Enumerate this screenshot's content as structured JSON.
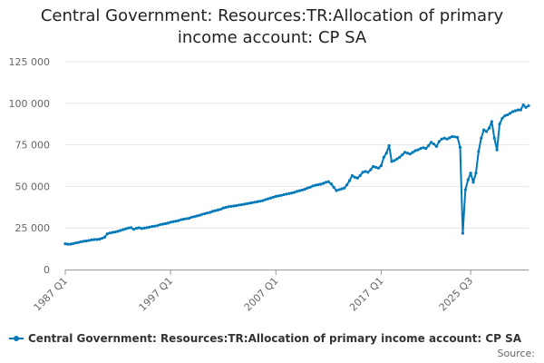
{
  "header": {
    "title_line1": "Central Government: Resources:TR:Allocation of primary",
    "title_line2": "income account: CP SA"
  },
  "footer": {
    "source_label": "Source:"
  },
  "colors": {
    "series": "#0079b8",
    "grid": "#e6e6e6",
    "axis": "#999999",
    "text": "#666666"
  },
  "chart_data": {
    "type": "line",
    "title": "Central Government: Resources:TR:Allocation of primary income account: CP SA",
    "xlabel": "",
    "ylabel": "",
    "grid": true,
    "legend_position": "bottom-left",
    "x_tick_labels": [
      "1987 Q1",
      "1997 Q1",
      "2007 Q1",
      "2017 Q1",
      "2025 Q3"
    ],
    "y_tick_labels": [
      "0",
      "25 000",
      "50 000",
      "75 000",
      "100 000",
      "125 000"
    ],
    "ylim": [
      0,
      125000
    ],
    "start": {
      "year": 1987,
      "quarter": 1
    },
    "series": [
      {
        "name": "Central Government: Resources:TR:Allocation of primary income account: CP SA",
        "values": [
          15500,
          15200,
          15300,
          15600,
          16000,
          16300,
          16700,
          17000,
          17200,
          17500,
          17800,
          18000,
          18000,
          18300,
          18800,
          19500,
          21500,
          22000,
          22300,
          22600,
          23000,
          23500,
          24000,
          24500,
          25000,
          25200,
          24200,
          24800,
          25100,
          24700,
          24900,
          25200,
          25500,
          25900,
          26100,
          26400,
          27000,
          27300,
          27600,
          27900,
          28500,
          28800,
          29100,
          29400,
          30000,
          30300,
          30600,
          30800,
          31500,
          31800,
          32200,
          32600,
          33200,
          33600,
          34000,
          34400,
          35000,
          35400,
          35800,
          36200,
          37000,
          37400,
          37800,
          38000,
          38200,
          38500,
          38800,
          39000,
          39300,
          39600,
          39900,
          40200,
          40500,
          40800,
          41100,
          41400,
          42000,
          42500,
          43000,
          43500,
          44000,
          44300,
          44600,
          45000,
          45400,
          45700,
          46000,
          46400,
          47000,
          47400,
          47800,
          48300,
          49000,
          49500,
          50200,
          50700,
          51000,
          51300,
          51800,
          52500,
          52800,
          51500,
          49500,
          47500,
          48000,
          48500,
          49000,
          51000,
          53500,
          56500,
          55500,
          55000,
          56500,
          58500,
          59000,
          58500,
          60000,
          62000,
          61500,
          61000,
          62500,
          67500,
          70000,
          74500,
          65000,
          65500,
          66500,
          67500,
          69000,
          70500,
          70000,
          69500,
          70500,
          71500,
          72000,
          72800,
          73300,
          72800,
          74500,
          76500,
          75500,
          74000,
          77000,
          78500,
          79000,
          78500,
          79200,
          80000,
          79800,
          79500,
          73500,
          21800,
          48000,
          54000,
          58000,
          52500,
          58000,
          71000,
          79000,
          84000,
          83000,
          85000,
          89000,
          79000,
          72000,
          87500,
          91000,
          92500,
          93000,
          94000,
          95000,
          95500,
          96000,
          96000,
          99000,
          97500,
          98500
        ]
      }
    ]
  }
}
